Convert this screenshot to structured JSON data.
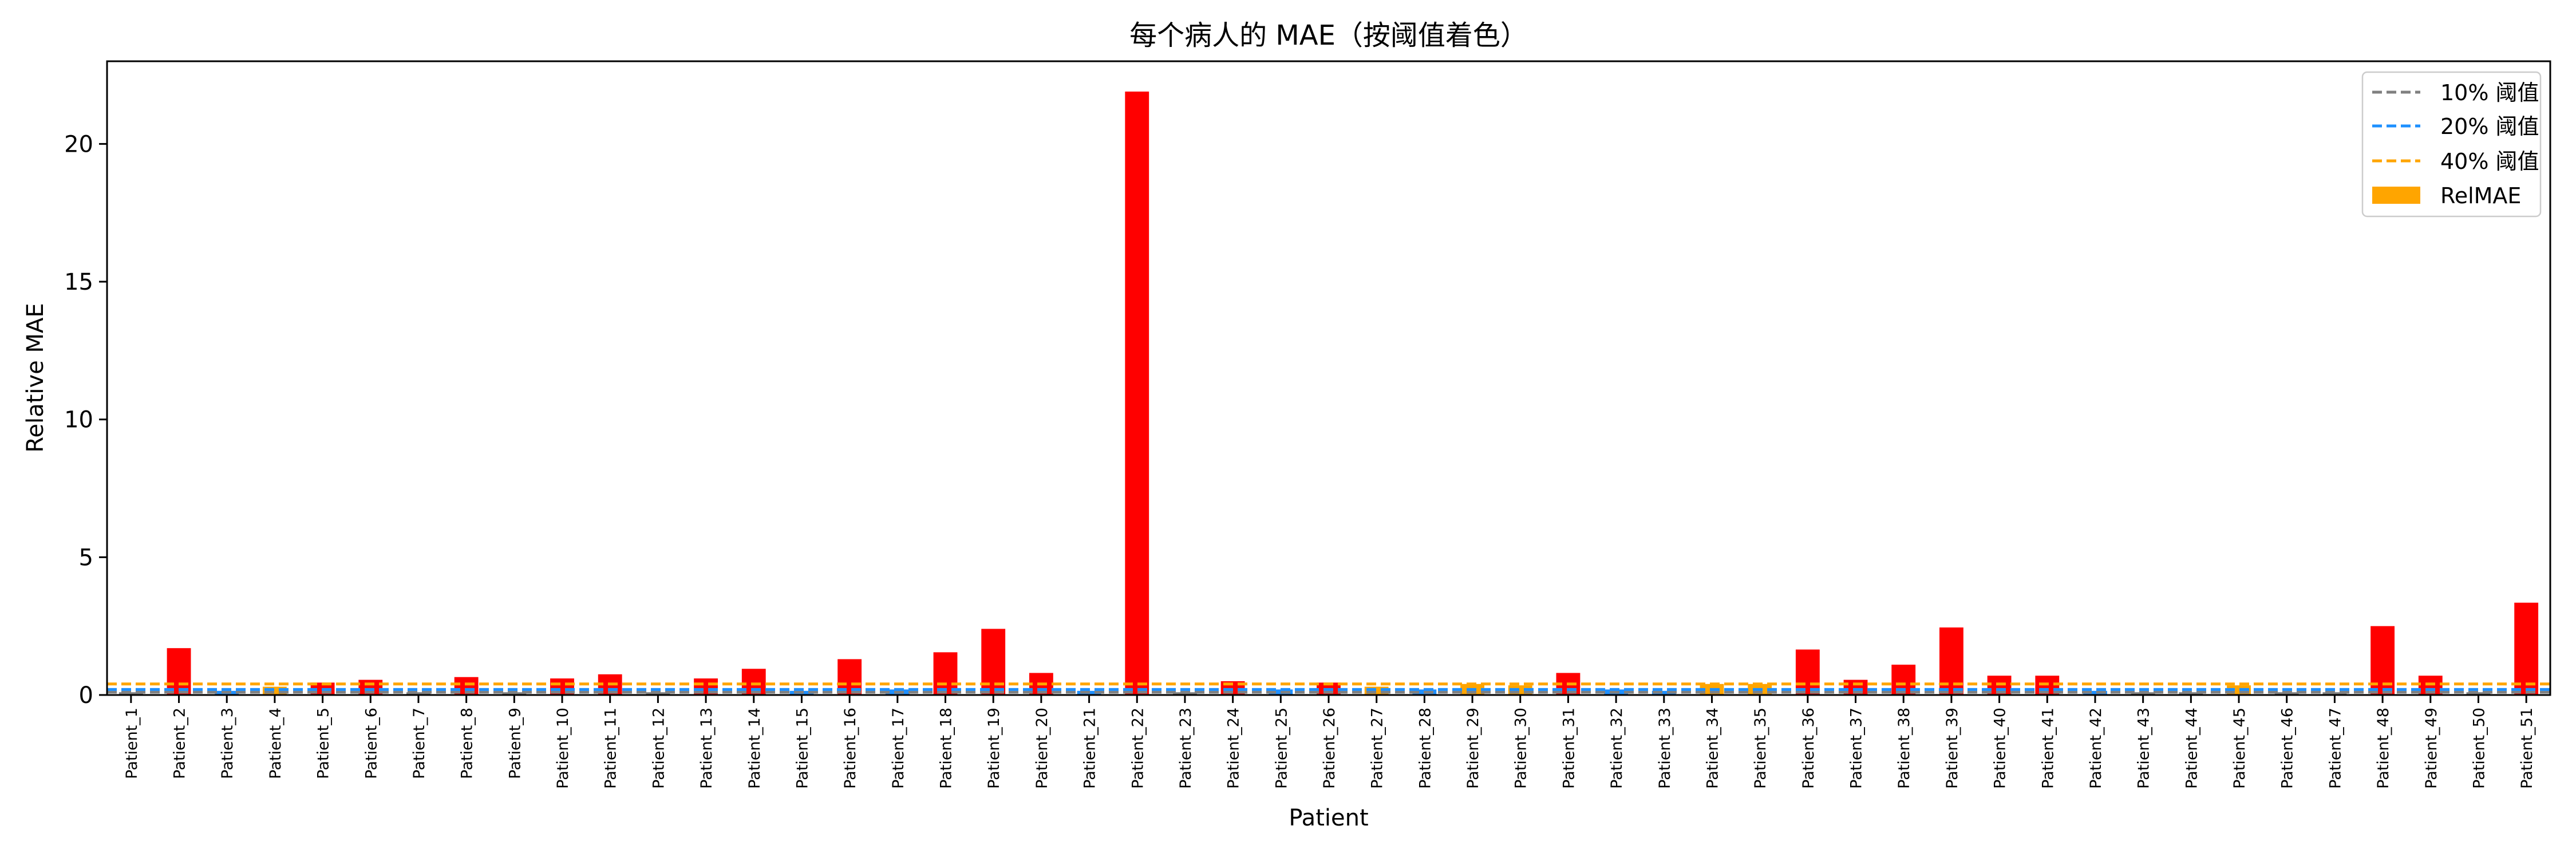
{
  "chart_data": {
    "type": "bar",
    "title": "每个病人的 MAE（按阈值着色）",
    "xlabel": "Patient",
    "ylabel": "Relative MAE",
    "ylim": [
      0,
      23
    ],
    "yticks": [
      0,
      5,
      10,
      15,
      20
    ],
    "grid": false,
    "legend_position": "top-right",
    "categories": [
      "Patient_1",
      "Patient_2",
      "Patient_3",
      "Patient_4",
      "Patient_5",
      "Patient_6",
      "Patient_7",
      "Patient_8",
      "Patient_9",
      "Patient_10",
      "Patient_11",
      "Patient_12",
      "Patient_13",
      "Patient_14",
      "Patient_15",
      "Patient_16",
      "Patient_17",
      "Patient_18",
      "Patient_19",
      "Patient_20",
      "Patient_21",
      "Patient_22",
      "Patient_23",
      "Patient_24",
      "Patient_25",
      "Patient_26",
      "Patient_27",
      "Patient_28",
      "Patient_29",
      "Patient_30",
      "Patient_31",
      "Patient_32",
      "Patient_33",
      "Patient_34",
      "Patient_35",
      "Patient_36",
      "Patient_37",
      "Patient_38",
      "Patient_39",
      "Patient_40",
      "Patient_41",
      "Patient_42",
      "Patient_43",
      "Patient_44",
      "Patient_45",
      "Patient_46",
      "Patient_47",
      "Patient_48",
      "Patient_49",
      "Patient_50",
      "Patient_51"
    ],
    "values": [
      0.1,
      1.7,
      0.15,
      0.3,
      0.45,
      0.55,
      0.1,
      0.65,
      0.1,
      0.6,
      0.75,
      0.1,
      0.6,
      0.95,
      0.15,
      1.3,
      0.2,
      1.55,
      2.4,
      0.8,
      0.15,
      21.9,
      0.1,
      0.5,
      0.2,
      0.45,
      0.3,
      0.2,
      0.4,
      0.35,
      0.8,
      0.2,
      0.15,
      0.4,
      0.4,
      1.65,
      0.55,
      1.1,
      2.45,
      0.7,
      0.7,
      0.15,
      0.1,
      0.1,
      0.35,
      0.1,
      0.1,
      2.5,
      0.7,
      0.1,
      3.35
    ],
    "bar_colors": {
      "above_40": "#ff0000",
      "below_40": "#ffa500",
      "below_20": "#1f8fff",
      "below_10": "#808080"
    },
    "thresholds": [
      {
        "label": "10% 阈值",
        "value": 0.1,
        "color": "#808080"
      },
      {
        "label": "20% 阈值",
        "value": 0.2,
        "color": "#1e90ff"
      },
      {
        "label": "40% 阈值",
        "value": 0.4,
        "color": "#ffa500"
      }
    ],
    "legend_bar": {
      "label": "RelMAE",
      "color": "#ffa500"
    }
  }
}
